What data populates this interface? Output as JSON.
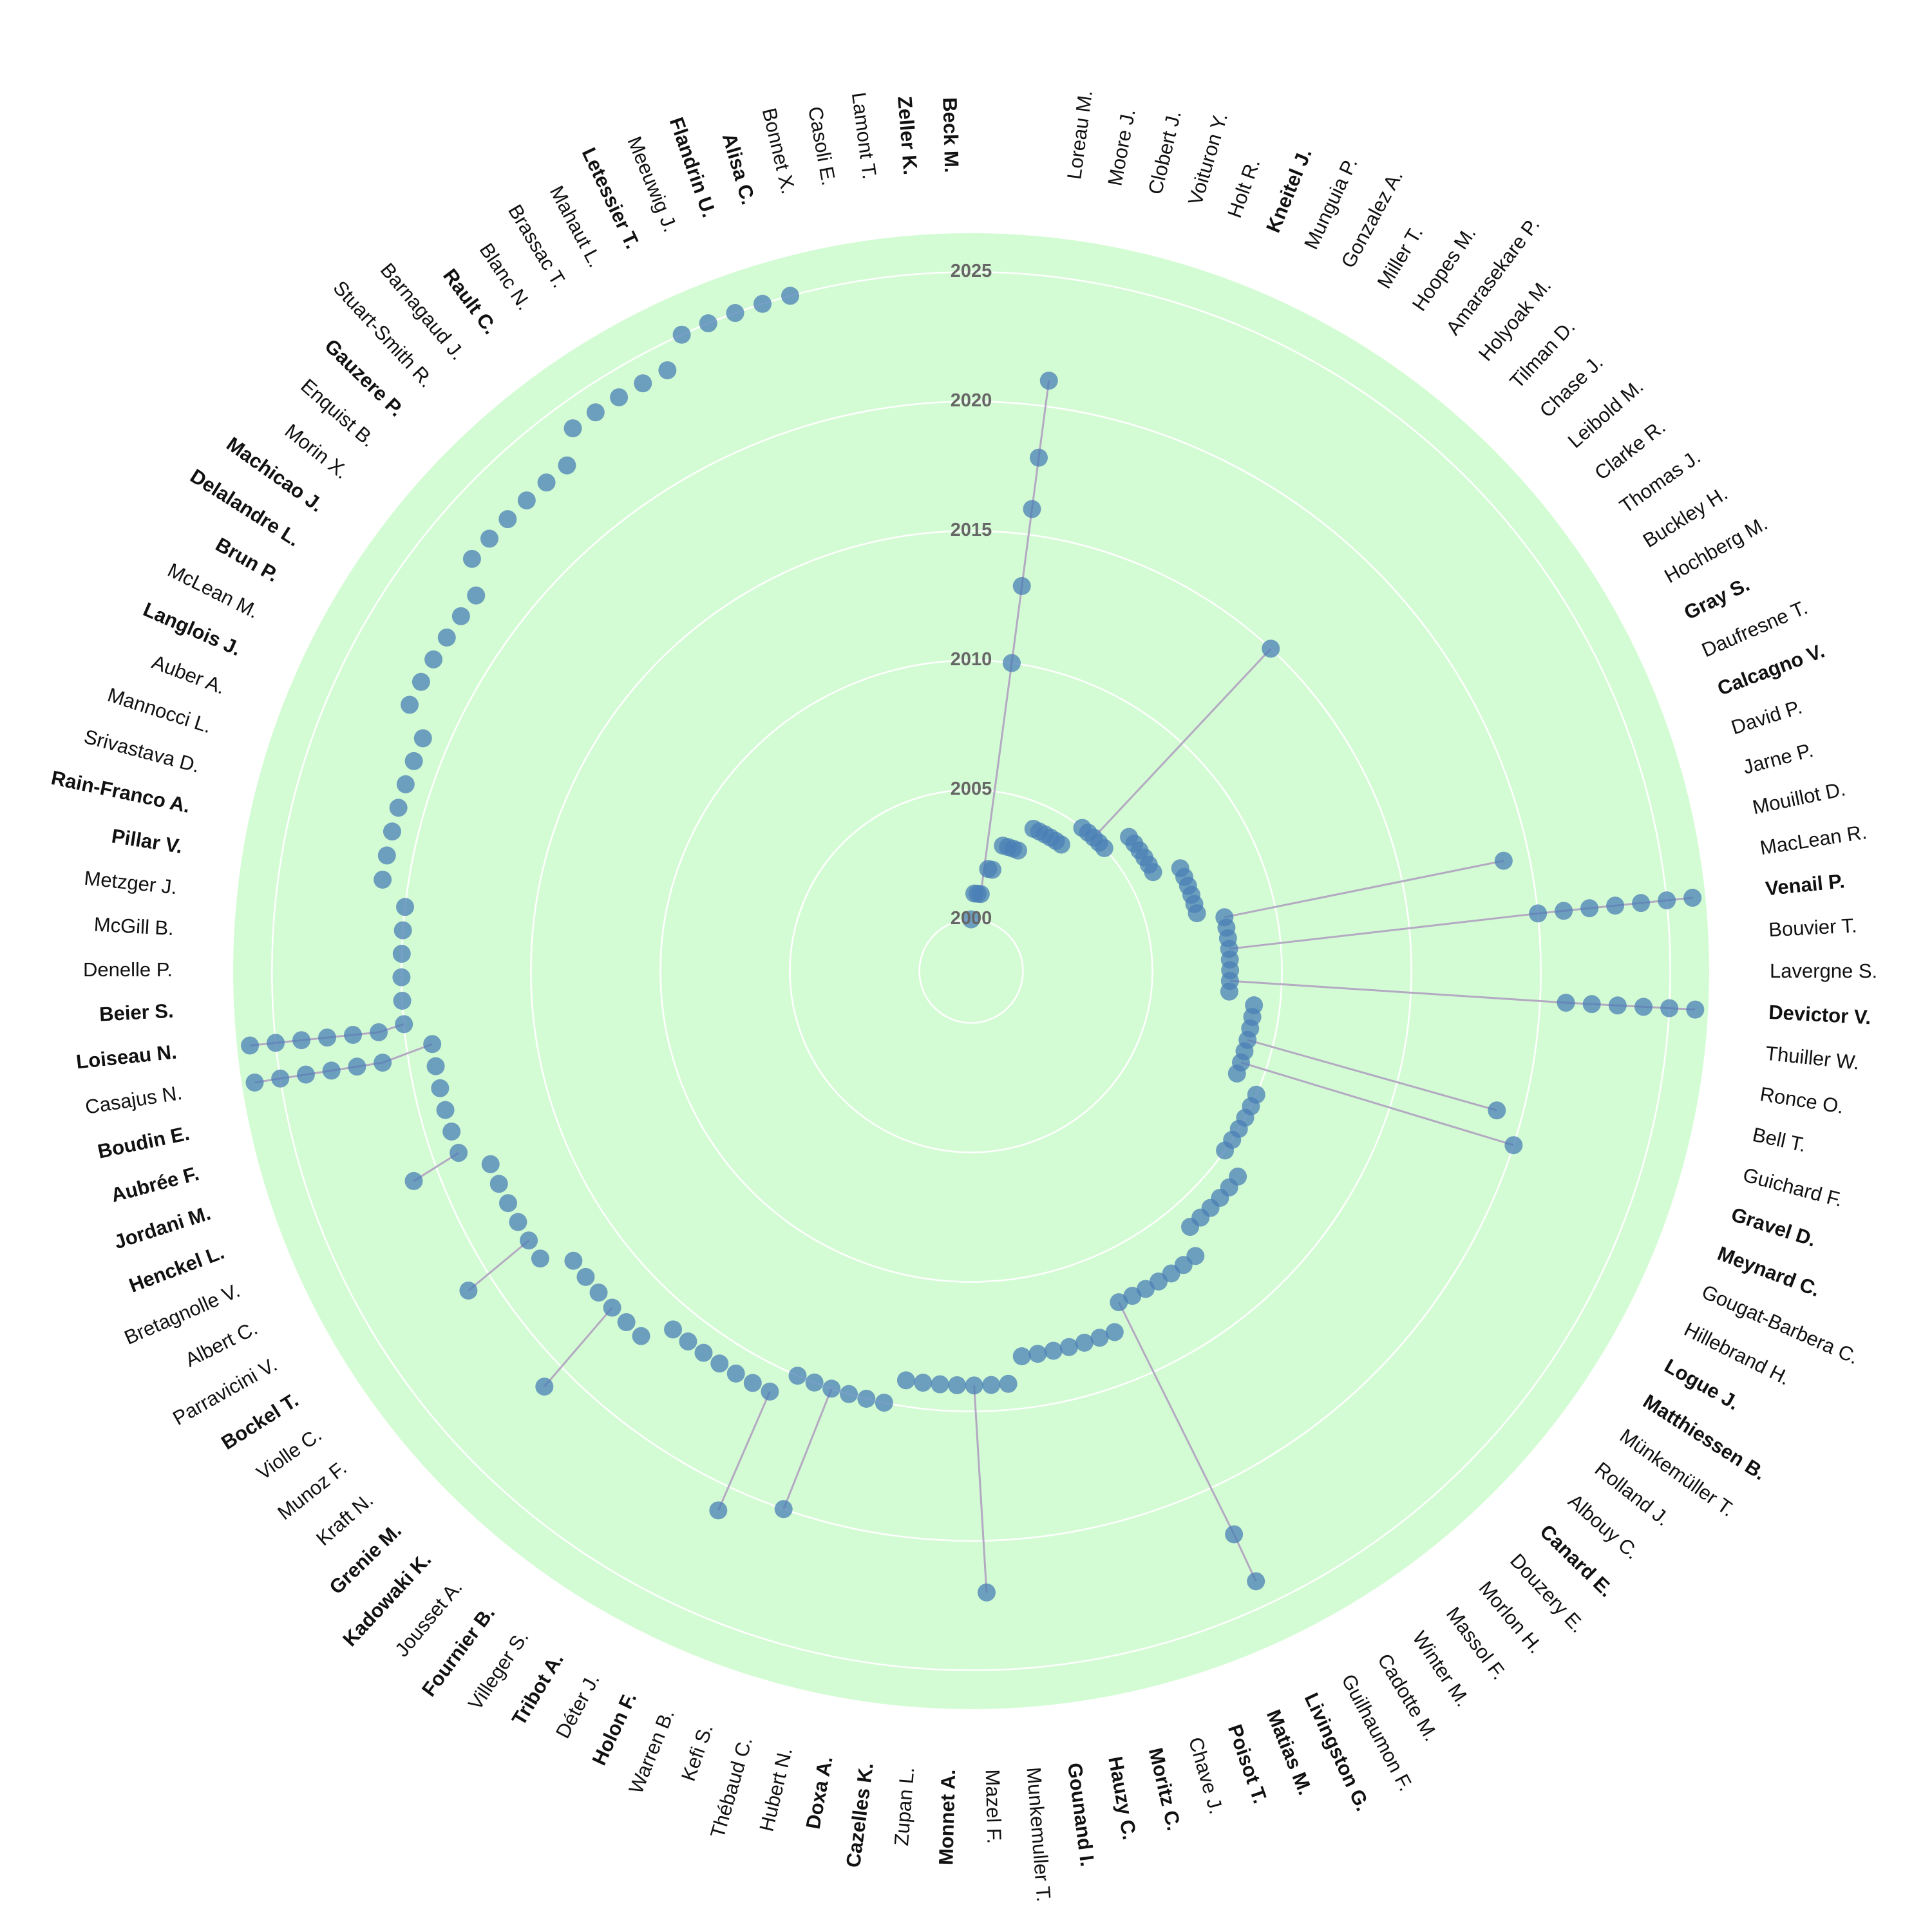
{
  "chart_data": {
    "type": "radial-timeline",
    "rlim": [
      1998,
      2026.5
    ],
    "rticks": [
      2000,
      2005,
      2010,
      2015,
      2020,
      2025
    ],
    "background_color": "#d4fcd4",
    "dot_color": "#4a7fb5",
    "link_color": "#b3a9c2",
    "papers": [
      2000,
      2001,
      2001,
      2001,
      2002,
      2002,
      2003,
      2003,
      2003,
      2003,
      2004,
      2004,
      2004,
      2004,
      2004,
      2004,
      2005,
      2005,
      2005,
      2005,
      2005,
      2006,
      2006,
      2006,
      2006,
      2006,
      2006,
      2007,
      2007,
      2007,
      2007,
      2007,
      2007,
      2008,
      2008,
      2008,
      2008,
      2008,
      2008,
      2008,
      2008,
      2009,
      2009,
      2009,
      2009,
      2009,
      2009,
      2009,
      2010,
      2010,
      2010,
      2010,
      2010,
      2010,
      2011,
      2011,
      2011,
      2011,
      2011,
      2011,
      2012,
      2012,
      2012,
      2012,
      2012,
      2012,
      2012,
      2013,
      2013,
      2013,
      2013,
      2013,
      2013,
      2013,
      2014,
      2014,
      2014,
      2014,
      2014,
      2014,
      2014,
      2015,
      2015,
      2015,
      2015,
      2015,
      2015,
      2016,
      2016,
      2016,
      2016,
      2016,
      2016,
      2016,
      2017,
      2017,
      2017,
      2017,
      2017,
      2017,
      2018,
      2018,
      2018,
      2018,
      2018,
      2018,
      2019,
      2019,
      2019,
      2019,
      2019,
      2019,
      2020,
      2020,
      2020,
      2020,
      2020,
      2020,
      2021,
      2021,
      2021,
      2021,
      2021,
      2021,
      2021,
      2022,
      2022,
      2022,
      2022,
      2022,
      2022,
      2023,
      2023,
      2023,
      2023,
      2023,
      2023,
      2024,
      2024,
      2024,
      2024,
      2024,
      2025,
      2025,
      2025,
      2025,
      2025
    ],
    "authors": [
      {
        "name": "Loreau M.",
        "years": [
          2010,
          2013,
          2016,
          2018,
          2021
        ]
      },
      {
        "name": "Moore J."
      },
      {
        "name": "Clobert J."
      },
      {
        "name": "Voituron Y."
      },
      {
        "name": "Holt R."
      },
      {
        "name": "Kneitel J.",
        "bold": true
      },
      {
        "name": "Munguia P."
      },
      {
        "name": "Gonzalez A."
      },
      {
        "name": "Miller T."
      },
      {
        "name": "Hoopes M."
      },
      {
        "name": "Amarasekare P."
      },
      {
        "name": "Holyoak M."
      },
      {
        "name": "Tilman D.",
        "years": [
          2015
        ]
      },
      {
        "name": "Chase J."
      },
      {
        "name": "Leibold M."
      },
      {
        "name": "Clarke R."
      },
      {
        "name": "Thomas J."
      },
      {
        "name": "Buckley H."
      },
      {
        "name": "Hochberg M."
      },
      {
        "name": "Gray S.",
        "bold": true
      },
      {
        "name": "Daufresne T."
      },
      {
        "name": "Calcagno V.",
        "bold": true
      },
      {
        "name": "David P."
      },
      {
        "name": "Jarne P."
      },
      {
        "name": "Mouillot D.",
        "years": [
          2019
        ]
      },
      {
        "name": "MacLean R."
      },
      {
        "name": "Venail P.",
        "bold": true,
        "years": [
          2020,
          2021,
          2022,
          2023,
          2024,
          2025,
          2026
        ]
      },
      {
        "name": "Bouvier T."
      },
      {
        "name": "Lavergne S."
      },
      {
        "name": "Devictor V.",
        "bold": true,
        "years": [
          2021,
          2022,
          2023,
          2024,
          2025,
          2026
        ]
      },
      {
        "name": "Thuiller W."
      },
      {
        "name": "Ronce O."
      },
      {
        "name": "Bell T."
      },
      {
        "name": "Guichard F.",
        "years": [
          2019
        ]
      },
      {
        "name": "Gravel D.",
        "bold": true,
        "years": [
          2020
        ]
      },
      {
        "name": "Meynard C.",
        "bold": true
      },
      {
        "name": "Gougat-Barbera C."
      },
      {
        "name": "Hillebrand H."
      },
      {
        "name": "Logue J.",
        "bold": true
      },
      {
        "name": "Matthiessen B.",
        "bold": true
      },
      {
        "name": "Münkemüller T."
      },
      {
        "name": "Rolland J."
      },
      {
        "name": "Albouy C."
      },
      {
        "name": "Canard E.",
        "bold": true
      },
      {
        "name": "Douzery E."
      },
      {
        "name": "Morlon H."
      },
      {
        "name": "Massol F."
      },
      {
        "name": "Winter M."
      },
      {
        "name": "Cadotte M."
      },
      {
        "name": "Guilhaumon F."
      },
      {
        "name": "Livingston G.",
        "bold": true,
        "years": [
          2022,
          2024
        ]
      },
      {
        "name": "Matias M.",
        "bold": true
      },
      {
        "name": "Poisot T.",
        "bold": true
      },
      {
        "name": "Chave J."
      },
      {
        "name": "Moritz C.",
        "bold": true
      },
      {
        "name": "Hauzy C.",
        "bold": true
      },
      {
        "name": "Gounand I.",
        "bold": true
      },
      {
        "name": "Munkemuller T."
      },
      {
        "name": "Mazel F.",
        "years": [
          2022
        ]
      },
      {
        "name": "Monnet A.",
        "bold": true
      },
      {
        "name": "Zupan L."
      },
      {
        "name": "Cazelles K.",
        "bold": true
      },
      {
        "name": "Doxa A.",
        "bold": true
      },
      {
        "name": "Hubert N."
      },
      {
        "name": "Thébaud C."
      },
      {
        "name": "Kefi S.",
        "years": [
          2020
        ]
      },
      {
        "name": "Warren B."
      },
      {
        "name": "Holon F.",
        "bold": true,
        "years": [
          2021
        ]
      },
      {
        "name": "Déter J."
      },
      {
        "name": "Tribot A.",
        "bold": true
      },
      {
        "name": "Villeger S."
      },
      {
        "name": "Fournier B.",
        "bold": true
      },
      {
        "name": "Jousset A."
      },
      {
        "name": "Kadowaki K.",
        "bold": true
      },
      {
        "name": "Grenie M.",
        "bold": true,
        "years": [
          2021
        ]
      },
      {
        "name": "Kraft N."
      },
      {
        "name": "Munoz F."
      },
      {
        "name": "Violle C."
      },
      {
        "name": "Bockel T.",
        "bold": true,
        "years": [
          2021
        ]
      },
      {
        "name": "Parravicini V."
      },
      {
        "name": "Albert C."
      },
      {
        "name": "Bretagnolle V."
      },
      {
        "name": "Henckel L.",
        "bold": true,
        "years": [
          2021
        ]
      },
      {
        "name": "Jordani M.",
        "bold": true
      },
      {
        "name": "Aubrée F.",
        "bold": true
      },
      {
        "name": "Boudin E.",
        "bold": true
      },
      {
        "name": "Casajus N.",
        "years": [
          2021,
          2022,
          2023,
          2024,
          2025,
          2026
        ]
      },
      {
        "name": "Loiseau N.",
        "bold": true,
        "years": [
          2021,
          2022,
          2023,
          2024,
          2025,
          2026
        ]
      },
      {
        "name": "Beier S.",
        "bold": true
      },
      {
        "name": "Denelle P."
      },
      {
        "name": "McGill B."
      },
      {
        "name": "Metzger J."
      },
      {
        "name": "Pillar V.",
        "bold": true
      },
      {
        "name": "Rain-Franco A.",
        "bold": true
      },
      {
        "name": "Srivastava D."
      },
      {
        "name": "Mannocci L."
      },
      {
        "name": "Auber A."
      },
      {
        "name": "Langlois J.",
        "bold": true
      },
      {
        "name": "McLean M."
      },
      {
        "name": "Brun P.",
        "bold": true
      },
      {
        "name": "Delalandre L.",
        "bold": true
      },
      {
        "name": "Machicao J.",
        "bold": true
      },
      {
        "name": "Morin X."
      },
      {
        "name": "Enquist B."
      },
      {
        "name": "Gauzere P.",
        "bold": true
      },
      {
        "name": "Stuart-Smith R."
      },
      {
        "name": "Barnagaud J."
      },
      {
        "name": "Rault C.",
        "bold": true
      },
      {
        "name": "Blanc N."
      },
      {
        "name": "Brassac T."
      },
      {
        "name": "Mahaut L."
      },
      {
        "name": "Letessier T.",
        "bold": true
      },
      {
        "name": "Meeuwig J."
      },
      {
        "name": "Flandrin U.",
        "bold": true
      },
      {
        "name": "Alisa C.",
        "bold": true
      },
      {
        "name": "Bonnet X."
      },
      {
        "name": "Casoli E."
      },
      {
        "name": "Lamont T."
      },
      {
        "name": "Zeller K.",
        "bold": true
      },
      {
        "name": "Beck M.",
        "bold": true
      }
    ]
  }
}
